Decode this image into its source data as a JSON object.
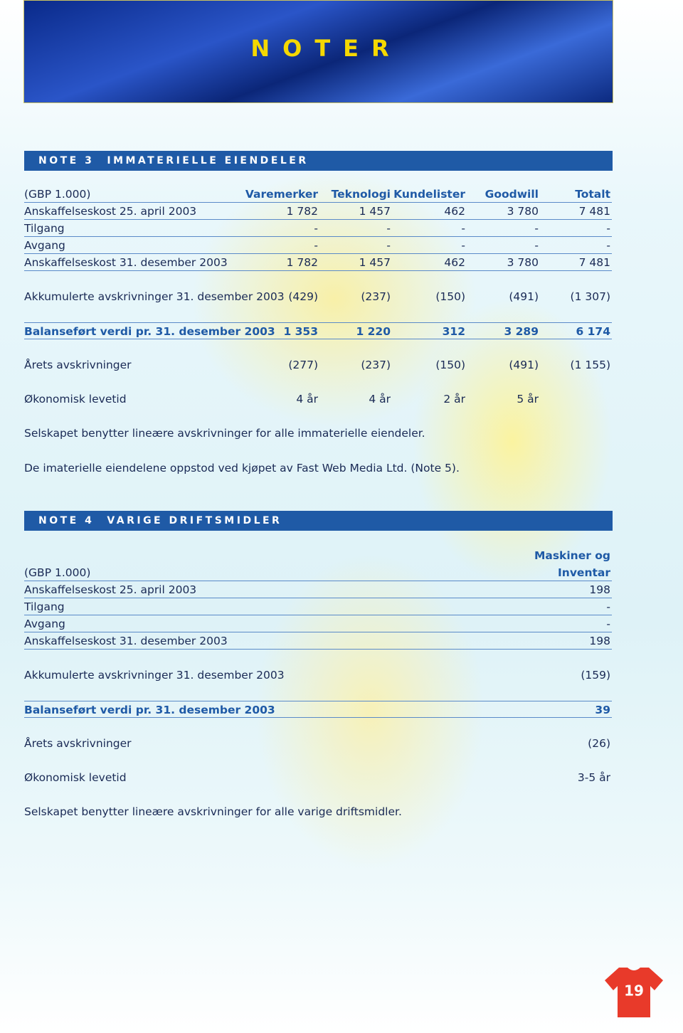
{
  "header": {
    "title": "NOTER"
  },
  "note3": {
    "number": "NOTE 3",
    "title": "IMMATERIELLE EIENDELER",
    "unit": "(GBP 1.000)",
    "columns": [
      "Varemerker",
      "Teknologi",
      "Kundelister",
      "Goodwill",
      "Totalt"
    ],
    "groups": [
      [
        [
          "Anskaffelseskost 25. april 2003",
          "1 782",
          "1 457",
          "462",
          "3 780",
          "7 481"
        ],
        [
          "Tilgang",
          "-",
          "-",
          "-",
          "-",
          "-"
        ],
        [
          "Avgang",
          "-",
          "-",
          "-",
          "-",
          "-"
        ],
        [
          "Anskaffelseskost 31. desember 2003",
          "1 782",
          "1 457",
          "462",
          "3 780",
          "7 481"
        ]
      ],
      [
        [
          "Akkumulerte avskrivninger 31. desember 2003",
          "(429)",
          "(237)",
          "(150)",
          "(491)",
          "(1 307)"
        ]
      ],
      [
        [
          "Balanseført verdi pr. 31. desember 2003",
          "1 353",
          "1 220",
          "312",
          "3 289",
          "6 174"
        ]
      ],
      [
        [
          "Årets avskrivninger",
          "(277)",
          "(237)",
          "(150)",
          "(491)",
          "(1 155)"
        ]
      ],
      [
        [
          "Økonomisk levetid",
          "4 år",
          "4 år",
          "2 år",
          "5 år"
        ]
      ]
    ],
    "notes": [
      "Selskapet benytter lineære avskrivninger for alle immaterielle eiendeler.",
      "De imaterielle eiendelene oppstod ved kjøpet av Fast Web Media Ltd. (Note 5)."
    ]
  },
  "note4": {
    "number": "NOTE 4",
    "title": "VARIGE DRIFTSMIDLER",
    "unit": "(GBP 1.000)",
    "column_lines": [
      "Maskiner og",
      "Inventar"
    ],
    "groups": [
      [
        [
          "Anskaffelseskost 25. april 2003",
          "198"
        ],
        [
          "Tilgang",
          "-"
        ],
        [
          "Avgang",
          "-"
        ],
        [
          "Anskaffelseskost 31. desember 2003",
          "198"
        ]
      ],
      [
        [
          "Akkumulerte avskrivninger 31. desember 2003",
          "(159)"
        ]
      ],
      [
        [
          "Balanseført verdi pr. 31. desember 2003",
          "39"
        ]
      ],
      [
        [
          "Årets avskrivninger",
          "(26)"
        ]
      ],
      [
        [
          "Økonomisk levetid",
          "3-5 år"
        ]
      ]
    ],
    "notes": [
      "Selskapet benytter lineære avskrivninger for alle varige driftsmidler."
    ]
  },
  "page_number": "19"
}
